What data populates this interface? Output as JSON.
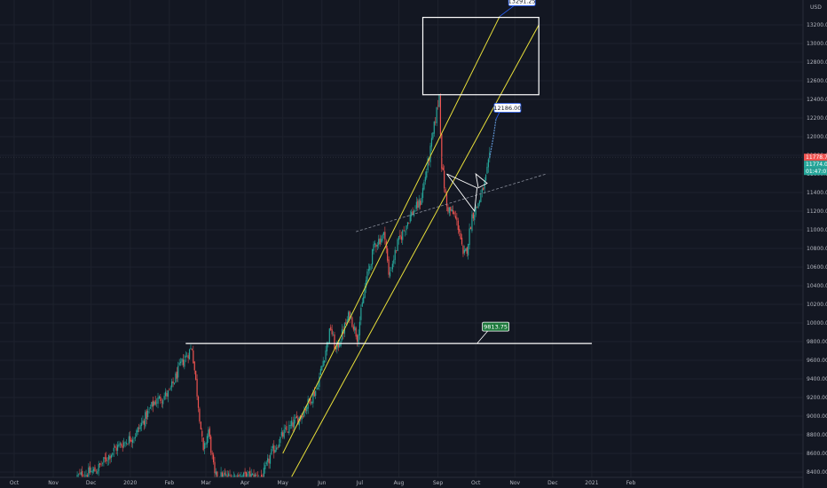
{
  "currency": "USD",
  "colors": {
    "background": "#131722",
    "grid": "#1e222d",
    "text": "#b2b5be",
    "up": "#26a69a",
    "down": "#ef5350",
    "channel": "#e8df3a",
    "support": "#ffffff",
    "trend": "#8a8f9c",
    "projection": "#5b8dc9"
  },
  "chart_data": {
    "type": "candlestick",
    "symbol_currency": "USD",
    "ylim": [
      8350,
      13400
    ],
    "y_ticks": [
      8400,
      8600,
      8800,
      9000,
      9200,
      9400,
      9600,
      9800,
      10000,
      10200,
      10400,
      10600,
      10800,
      11000,
      11200,
      11400,
      11600,
      11800,
      12000,
      12200,
      12400,
      12600,
      12800,
      13000,
      13200
    ],
    "y_tick_labels": [
      "8400.00",
      "8600.00",
      "8800.00",
      "9000.00",
      "9200.00",
      "9400.00",
      "9600.00",
      "9800.00",
      "10000.00",
      "10200.00",
      "10400.00",
      "10600.00",
      "10800.00",
      "11000.00",
      "11200.00",
      "11400.00",
      "11600.00",
      "11800.00",
      "12000.00",
      "12200.00",
      "12400.00",
      "12600.00",
      "12800.00",
      "13000.00",
      "13200.00"
    ],
    "x_ticks": [
      {
        "label": "Oct",
        "date": "2019-10-01"
      },
      {
        "label": "Nov",
        "date": "2019-11-01"
      },
      {
        "label": "Dec",
        "date": "2019-12-01"
      },
      {
        "label": "2020",
        "date": "2020-01-01"
      },
      {
        "label": "Feb",
        "date": "2020-02-01"
      },
      {
        "label": "Mar",
        "date": "2020-03-01"
      },
      {
        "label": "Apr",
        "date": "2020-04-01"
      },
      {
        "label": "May",
        "date": "2020-05-01"
      },
      {
        "label": "Jun",
        "date": "2020-06-01"
      },
      {
        "label": "Jul",
        "date": "2020-07-01"
      },
      {
        "label": "Aug",
        "date": "2020-08-01"
      },
      {
        "label": "Sep",
        "date": "2020-09-01"
      },
      {
        "label": "Oct",
        "date": "2020-10-01"
      },
      {
        "label": "Nov",
        "date": "2020-11-01"
      },
      {
        "label": "Dec",
        "date": "2020-12-01"
      },
      {
        "label": "2021",
        "date": "2021-01-01"
      },
      {
        "label": "Feb",
        "date": "2021-02-01"
      }
    ],
    "price_path": [
      [
        "2019-11-20",
        8350
      ],
      [
        "2019-12-05",
        8420
      ],
      [
        "2019-12-20",
        8650
      ],
      [
        "2020-01-05",
        8800
      ],
      [
        "2020-01-20",
        9150
      ],
      [
        "2020-02-01",
        9250
      ],
      [
        "2020-02-10",
        9550
      ],
      [
        "2020-02-19",
        9740
      ],
      [
        "2020-02-25",
        9000
      ],
      [
        "2020-02-28",
        8600
      ],
      [
        "2020-03-03",
        8850
      ],
      [
        "2020-03-08",
        8350
      ],
      [
        "2020-04-15",
        8350
      ],
      [
        "2020-04-22",
        8600
      ],
      [
        "2020-05-01",
        8800
      ],
      [
        "2020-05-15",
        9000
      ],
      [
        "2020-05-28",
        9300
      ],
      [
        "2020-06-08",
        9950
      ],
      [
        "2020-06-12",
        9700
      ],
      [
        "2020-06-23",
        10100
      ],
      [
        "2020-06-29",
        9850
      ],
      [
        "2020-07-06",
        10450
      ],
      [
        "2020-07-13",
        10850
      ],
      [
        "2020-07-21",
        10950
      ],
      [
        "2020-07-24",
        10500
      ],
      [
        "2020-07-31",
        10850
      ],
      [
        "2020-08-10",
        11150
      ],
      [
        "2020-08-18",
        11300
      ],
      [
        "2020-08-26",
        11850
      ],
      [
        "2020-09-02",
        12450
      ],
      [
        "2020-09-04",
        11700
      ],
      [
        "2020-09-08",
        11250
      ],
      [
        "2020-09-14",
        11150
      ],
      [
        "2020-09-18",
        11000
      ],
      [
        "2020-09-21",
        10700
      ],
      [
        "2020-09-24",
        10800
      ],
      [
        "2020-09-28",
        11150
      ],
      [
        "2020-10-02",
        11250
      ],
      [
        "2020-10-06",
        11400
      ],
      [
        "2020-10-09",
        11550
      ],
      [
        "2020-10-12",
        11774
      ]
    ],
    "channel_lines": [
      {
        "name": "channel-upper",
        "from": [
          "2020-05-01",
          8600
        ],
        "to": [
          "2020-10-20",
          13291.25
        ]
      },
      {
        "name": "channel-lower",
        "from": [
          "2020-05-08",
          8350
        ],
        "to": [
          "2020-11-20",
          13200
        ]
      }
    ],
    "trend_line": {
      "from": [
        "2020-06-28",
        10980
      ],
      "to": [
        "2020-11-26",
        11600
      ]
    },
    "support_line": {
      "from": [
        "2020-02-14",
        9780
      ],
      "to": [
        "2021-01-01",
        9780
      ]
    },
    "target_box": {
      "from": [
        "2020-08-20",
        12450
      ],
      "to": [
        "2020-11-20",
        13280
      ]
    },
    "triangle": {
      "points": [
        [
          "2020-09-08",
          11600
        ],
        [
          "2020-10-02",
          11450
        ],
        [
          "2020-09-30",
          11200
        ]
      ]
    },
    "triangle_small": {
      "points": [
        [
          "2020-10-01",
          11600
        ],
        [
          "2020-10-10",
          11500
        ],
        [
          "2020-10-03",
          11450
        ]
      ]
    },
    "projection": {
      "points": [
        [
          "2020-10-12",
          11774
        ],
        [
          "2020-10-15",
          12000
        ],
        [
          "2020-10-17",
          12186
        ]
      ]
    },
    "callouts": [
      {
        "label": "13291.25",
        "value": 13291.25,
        "date": "2020-10-20"
      },
      {
        "label": "12186.00",
        "value": 12186.0,
        "date": "2020-10-17"
      },
      {
        "label": "9813.75",
        "value": 9813.75,
        "date": "2020-10-02"
      }
    ],
    "price_tags": [
      {
        "label": "11778.75",
        "value": 11778.75,
        "color": "#ef5350"
      },
      {
        "label": "11774.00",
        "value": 11774.0,
        "color": "#26a69a"
      },
      {
        "label": "01:47:07",
        "value": 11690,
        "color": "#26a69a"
      }
    ],
    "last_price": 11778.75
  }
}
